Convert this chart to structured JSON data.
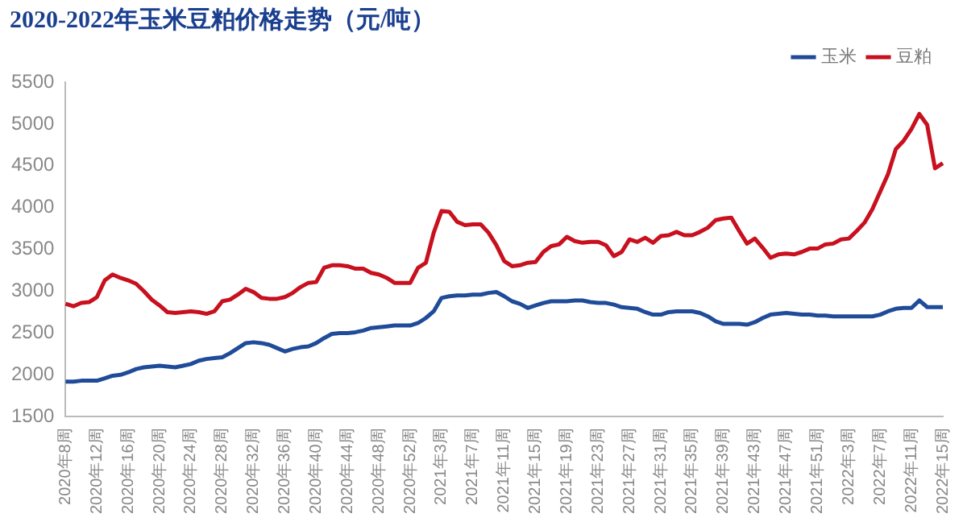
{
  "chart_data": {
    "type": "line",
    "title": "2020-2022年玉米豆粕价格走势（元/吨）",
    "categories": [
      "2020年8周",
      null,
      null,
      null,
      "2020年12周",
      null,
      null,
      null,
      "2020年16周",
      null,
      null,
      null,
      "2020年20周",
      null,
      null,
      null,
      "2020年24周",
      null,
      null,
      null,
      "2020年28周",
      null,
      null,
      null,
      "2020年32周",
      null,
      null,
      null,
      "2020年36周",
      null,
      null,
      null,
      "2020年40周",
      null,
      null,
      null,
      "2020年44周",
      null,
      null,
      null,
      "2020年48周",
      null,
      null,
      null,
      "2020年52周",
      null,
      null,
      null,
      "2021年3周",
      null,
      null,
      null,
      "2021年7周",
      null,
      null,
      null,
      "2021年11周",
      null,
      null,
      null,
      "2021年15周",
      null,
      null,
      null,
      "2021年19周",
      null,
      null,
      null,
      "2021年23周",
      null,
      null,
      null,
      "2021年27周",
      null,
      null,
      null,
      "2021年31周",
      null,
      null,
      null,
      "2021年35周",
      null,
      null,
      null,
      "2021年39周",
      null,
      null,
      null,
      "2021年43周",
      null,
      null,
      null,
      "2021年47周",
      null,
      null,
      null,
      "2021年51周",
      null,
      null,
      null,
      "2022年3周",
      null,
      null,
      null,
      "2022年7周",
      null,
      null,
      null,
      "2022年11周",
      null,
      null,
      null,
      "2022年15周"
    ],
    "series": [
      {
        "name": "玉米",
        "color": "#1f4b99",
        "values": [
          1920,
          1920,
          1930,
          1930,
          1930,
          1960,
          1990,
          2000,
          2030,
          2070,
          2090,
          2100,
          2110,
          2100,
          2090,
          2110,
          2130,
          2170,
          2190,
          2200,
          2210,
          2260,
          2320,
          2380,
          2390,
          2380,
          2360,
          2320,
          2280,
          2310,
          2330,
          2340,
          2380,
          2440,
          2490,
          2500,
          2500,
          2510,
          2530,
          2560,
          2570,
          2580,
          2590,
          2590,
          2590,
          2620,
          2680,
          2760,
          2920,
          2940,
          2950,
          2950,
          2960,
          2960,
          2980,
          2990,
          2940,
          2880,
          2850,
          2800,
          2830,
          2860,
          2880,
          2880,
          2880,
          2890,
          2890,
          2870,
          2860,
          2860,
          2840,
          2810,
          2800,
          2790,
          2750,
          2720,
          2720,
          2750,
          2760,
          2760,
          2760,
          2740,
          2700,
          2640,
          2610,
          2610,
          2610,
          2600,
          2630,
          2680,
          2720,
          2730,
          2740,
          2730,
          2720,
          2720,
          2710,
          2710,
          2700,
          2700,
          2700,
          2700,
          2700,
          2700,
          2720,
          2760,
          2790,
          2800,
          2800,
          2890,
          2810,
          2810,
          2810
        ]
      },
      {
        "name": "豆粕",
        "color": "#c8101e",
        "values": [
          2850,
          2820,
          2860,
          2870,
          2930,
          3130,
          3200,
          3160,
          3130,
          3090,
          3000,
          2900,
          2830,
          2750,
          2740,
          2750,
          2760,
          2750,
          2730,
          2760,
          2880,
          2900,
          2960,
          3030,
          2990,
          2920,
          2910,
          2910,
          2930,
          2980,
          3050,
          3100,
          3110,
          3280,
          3310,
          3310,
          3300,
          3270,
          3270,
          3220,
          3200,
          3160,
          3100,
          3100,
          3100,
          3280,
          3340,
          3700,
          3960,
          3950,
          3830,
          3790,
          3800,
          3800,
          3700,
          3550,
          3360,
          3300,
          3310,
          3340,
          3350,
          3470,
          3540,
          3560,
          3650,
          3600,
          3580,
          3590,
          3590,
          3550,
          3420,
          3470,
          3620,
          3590,
          3640,
          3580,
          3660,
          3670,
          3710,
          3670,
          3670,
          3710,
          3760,
          3850,
          3870,
          3880,
          3720,
          3570,
          3630,
          3520,
          3400,
          3440,
          3450,
          3440,
          3470,
          3510,
          3510,
          3560,
          3570,
          3620,
          3630,
          3720,
          3820,
          3980,
          4190,
          4400,
          4700,
          4800,
          4940,
          5120,
          4990,
          4470,
          4530
        ]
      }
    ],
    "ylim": [
      1500,
      5500
    ],
    "yticks": [
      1500,
      2000,
      2500,
      3000,
      3500,
      4000,
      4500,
      5000,
      5500
    ],
    "grid": false,
    "legend": "top right",
    "marker": "none",
    "line_style": "solid"
  }
}
